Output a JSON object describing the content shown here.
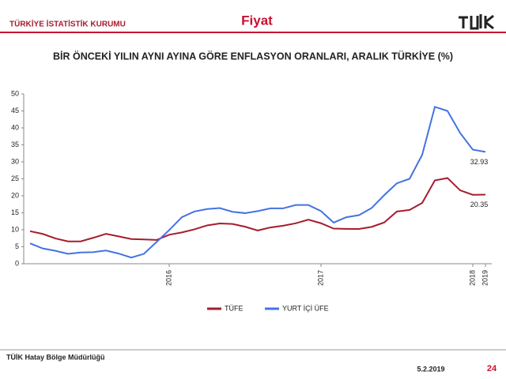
{
  "header": {
    "org": "TÜRKİYE İSTATİSTİK KURUMU",
    "section": "Fiyat"
  },
  "footer": {
    "office": "TÜİK Hatay Bölge Müdürlüğü",
    "date": "5.2.2019",
    "page": "24"
  },
  "chart_data": {
    "type": "line",
    "title": "BİR ÖNCEKİ YILIN AYNI AYINA GÖRE ENFLASYON ORANLARI, ARALIK TÜRKİYE (%)",
    "categories": [
      null,
      null,
      null,
      null,
      null,
      null,
      null,
      null,
      null,
      null,
      null,
      "2016",
      null,
      null,
      null,
      null,
      null,
      null,
      null,
      null,
      null,
      null,
      null,
      "2017",
      null,
      null,
      null,
      null,
      null,
      null,
      null,
      null,
      null,
      null,
      null,
      "2018",
      "2019"
    ],
    "series": [
      {
        "name": "TÜFE",
        "color": "#a61c2e",
        "values": [
          9.58,
          8.78,
          7.46,
          6.57,
          6.58,
          7.64,
          8.79,
          8.05,
          7.28,
          7.16,
          7.0,
          8.53,
          9.22,
          10.13,
          11.29,
          11.87,
          11.72,
          10.9,
          9.79,
          10.68,
          11.2,
          11.9,
          12.98,
          11.92,
          10.35,
          10.26,
          10.23,
          10.85,
          12.15,
          15.39,
          15.85,
          17.9,
          24.52,
          25.24,
          21.62,
          20.3,
          20.35
        ]
      },
      {
        "name": "YURT İÇİ ÜFE",
        "color": "#4472e4",
        "values": [
          6.0,
          4.5,
          3.8,
          2.9,
          3.3,
          3.4,
          3.9,
          3.0,
          1.8,
          2.9,
          6.4,
          9.9,
          13.7,
          15.4,
          16.1,
          16.4,
          15.3,
          14.9,
          15.5,
          16.3,
          16.3,
          17.3,
          17.3,
          15.5,
          12.1,
          13.7,
          14.3,
          16.4,
          20.2,
          23.7,
          25.0,
          32.1,
          46.2,
          45.0,
          38.5,
          33.6,
          32.93
        ]
      }
    ],
    "ylim": [
      0,
      50
    ],
    "yticks": [
      0,
      5,
      10,
      15,
      20,
      25,
      30,
      35,
      40,
      45,
      50
    ],
    "legend": "bottom"
  }
}
